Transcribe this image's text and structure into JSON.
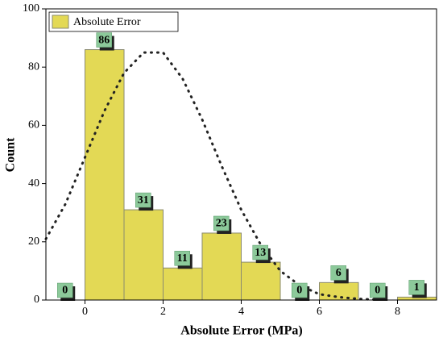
{
  "chart_data": {
    "type": "histogram",
    "x_label": "Absolute Error (MPa)",
    "y_label": "Count",
    "bins": [
      -1,
      0,
      1,
      2,
      3,
      4,
      5,
      6,
      7,
      8,
      9
    ],
    "series": [
      {
        "name": "Absolute Error",
        "color": "#e3d955",
        "values": [
          0,
          86,
          31,
          11,
          23,
          13,
          0,
          6,
          0,
          1
        ]
      }
    ],
    "curve": {
      "x": [
        -1,
        -0.5,
        0,
        0.5,
        1,
        1.5,
        2,
        2.5,
        3,
        3.5,
        4,
        4.5,
        5,
        5.5,
        6,
        6.5,
        7,
        7.5
      ],
      "values": [
        21,
        33,
        49,
        65,
        78,
        85,
        85,
        76,
        62,
        46,
        31,
        19,
        10,
        5,
        2,
        1,
        0.4,
        0.1
      ]
    },
    "xlim": [
      -1,
      9
    ],
    "ylim": [
      0,
      100
    ],
    "xticks": [
      0,
      2,
      4,
      6,
      8
    ],
    "yticks": [
      0,
      20,
      40,
      60,
      80,
      100
    ],
    "legend": "top-left"
  }
}
